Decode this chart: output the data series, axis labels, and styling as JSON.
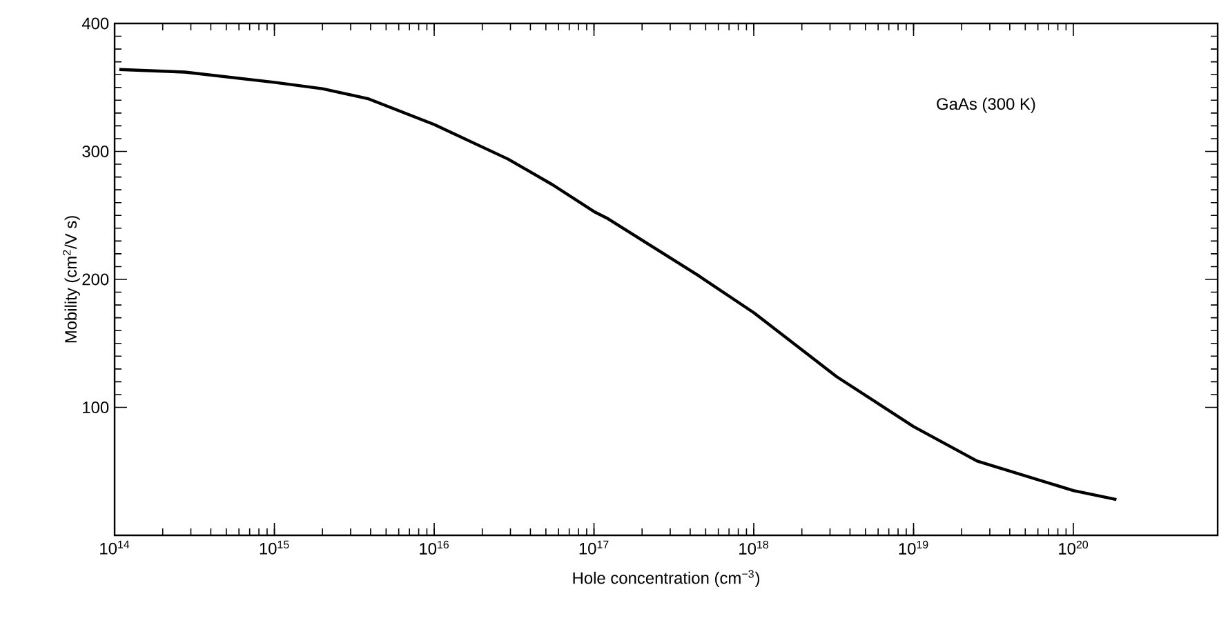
{
  "chart_data": {
    "type": "line",
    "xlabel": "Hole concentration (cm$^{−3}$)",
    "ylabel": "Mobility (cm$^{2}$/V s)",
    "annotations": [
      "GaAs (300  K)"
    ],
    "log": "x",
    "marker": "none",
    "line_style": "solid",
    "xlim": [
      100000000000000.0,
      8e+20
    ],
    "ylim": [
      0,
      400
    ],
    "xticks": [
      {
        "value": 100000000000000.0,
        "label": "10$^{14}$"
      },
      {
        "value": 1000000000000000.0,
        "label": "10$^{15}$"
      },
      {
        "value": 1e+16,
        "label": "10$^{16}$"
      },
      {
        "value": 1e+17,
        "label": "10$^{17}$"
      },
      {
        "value": 1e+18,
        "label": "10$^{18}$"
      },
      {
        "value": 1e+19,
        "label": "10$^{19}$"
      },
      {
        "value": 1e+20,
        "label": "10$^{20}$"
      }
    ],
    "yticks": [
      100,
      200,
      300,
      400
    ],
    "series": [
      {
        "color": "#000000",
        "x": [
          107000000000000.0,
          275000000000000.0,
          1000000000000000.0,
          2000000000000000.0,
          3900000000000000.0,
          1e+16,
          2.9e+16,
          5.5e+16,
          1e+17,
          1.2e+17,
          4.5e+17,
          1e+18,
          3.3e+18,
          1e+19,
          2.5e+19,
          1e+20,
          1.86e+20
        ],
        "values": [
          364,
          362,
          354,
          349,
          341,
          321,
          294,
          274,
          253,
          248,
          203,
          174,
          124,
          85,
          58,
          35,
          28
        ]
      }
    ]
  }
}
